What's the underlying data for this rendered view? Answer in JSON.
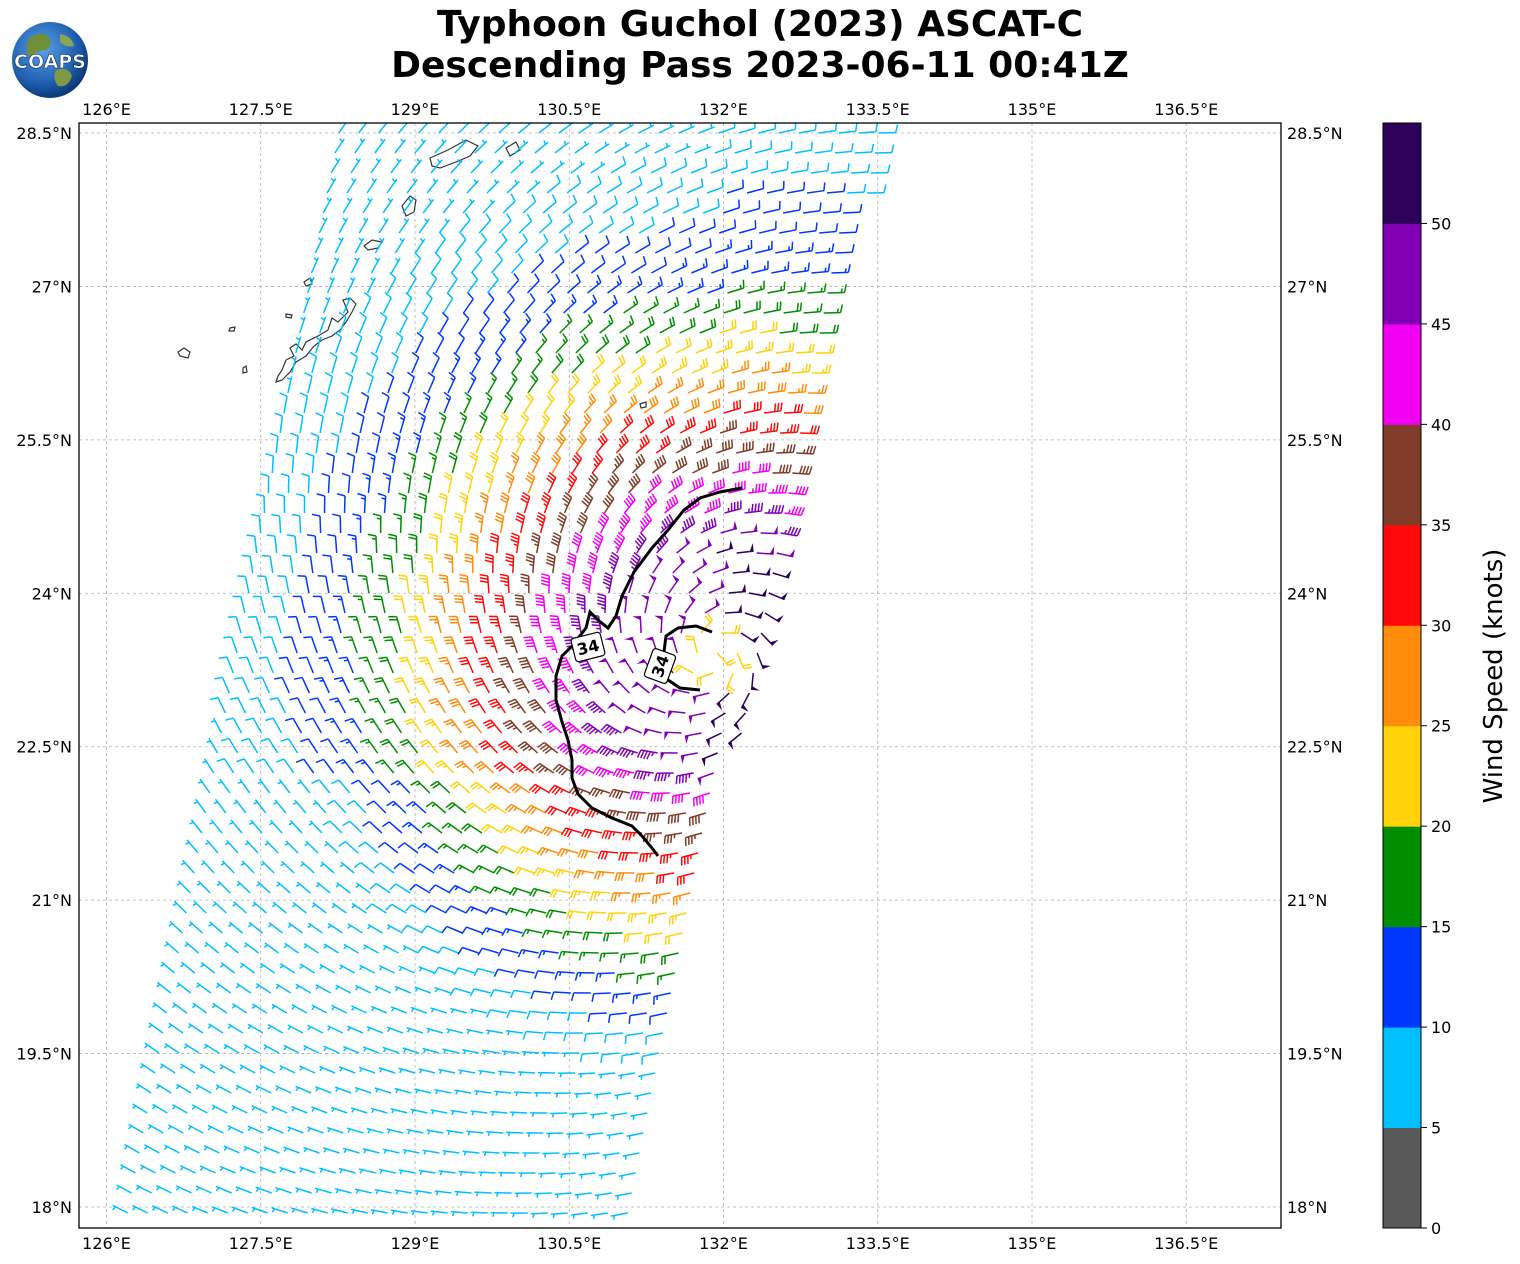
{
  "title": {
    "line1": "Typhoon Guchol (2023) ASCAT-C",
    "line2": "Descending Pass 2023-06-11 00:41Z"
  },
  "logo": {
    "text": "COAPS"
  },
  "map": {
    "lon_labels": [
      "126°E",
      "127.5°E",
      "129°E",
      "130.5°E",
      "132°E",
      "133.5°E",
      "135°E",
      "136.5°E"
    ],
    "lon_values": [
      126,
      127.5,
      129,
      130.5,
      132,
      133.5,
      135,
      136.5
    ],
    "lat_labels": [
      "28.5°N",
      "27°N",
      "25.5°N",
      "24°N",
      "22.5°N",
      "21°N",
      "19.5°N",
      "18°N"
    ],
    "lat_values": [
      28.5,
      27,
      25.5,
      24,
      22.5,
      21,
      19.5,
      18
    ],
    "contour_labels": [
      "34",
      "34"
    ],
    "storm_center": {
      "lon": 131.9,
      "lat": 23.4
    },
    "swath_edges": {
      "west_lon_north": 128.2,
      "west_lon_south": 126.1,
      "east_lon_north": 133.6,
      "east_lon_south": 131.1
    }
  },
  "colorbar": {
    "label": "Wind Speed (knots)",
    "tick_labels": [
      "0",
      "5",
      "10",
      "15",
      "20",
      "25",
      "30",
      "35",
      "40",
      "45",
      "50"
    ],
    "bins": [
      {
        "min": 0,
        "max": 5,
        "color": "#595959"
      },
      {
        "min": 5,
        "max": 10,
        "color": "#00bfff"
      },
      {
        "min": 10,
        "max": 15,
        "color": "#0038ff"
      },
      {
        "min": 15,
        "max": 20,
        "color": "#008e00"
      },
      {
        "min": 20,
        "max": 25,
        "color": "#ffd20a"
      },
      {
        "min": 25,
        "max": 30,
        "color": "#ff8c0a"
      },
      {
        "min": 30,
        "max": 35,
        "color": "#ff0a0a"
      },
      {
        "min": 35,
        "max": 40,
        "color": "#7f3c28"
      },
      {
        "min": 40,
        "max": 45,
        "color": "#f000f0"
      },
      {
        "min": 45,
        "max": 50,
        "color": "#8200b4"
      },
      {
        "min": 50,
        "max": 55,
        "color": "#2d005a"
      }
    ]
  }
}
